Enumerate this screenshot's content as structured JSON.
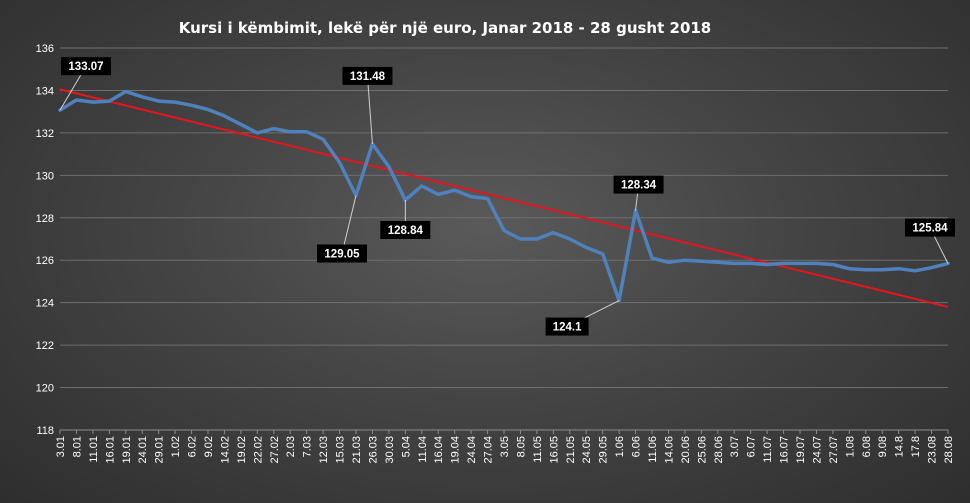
{
  "chart_data": {
    "type": "line",
    "title": "Kursi i këmbimit, lekë për një euro, Janar 2018 - 28 gusht 2018",
    "xlabel": "",
    "ylabel": "",
    "ylim": [
      118,
      136
    ],
    "y_ticks": [
      118,
      120,
      122,
      124,
      126,
      128,
      130,
      132,
      134,
      136
    ],
    "grid": true,
    "categories": [
      "3.01",
      "8.01",
      "11.01",
      "16.01",
      "19.01",
      "24.01",
      "29.01",
      "1.02",
      "6.02",
      "9.02",
      "14.02",
      "19.02",
      "22.02",
      "27.02",
      "2.03",
      "7.03",
      "12.03",
      "15.03",
      "21.03",
      "26.03",
      "30.03",
      "5.04",
      "11.04",
      "16.04",
      "19.04",
      "24.04",
      "27.04",
      "3.05",
      "8.05",
      "11.05",
      "16.05",
      "21.05",
      "24.05",
      "29.05",
      "1.06",
      "6.06",
      "11.06",
      "14.06",
      "20.06",
      "25.06",
      "28.06",
      "3.07",
      "6.07",
      "11.07",
      "16.07",
      "19.07",
      "24.07",
      "27.07",
      "1.08",
      "6.08",
      "9.08",
      "14.8",
      "17.8",
      "23.08",
      "28.08"
    ],
    "series": [
      {
        "name": "",
        "color": "#4f81bd",
        "values": [
          133.07,
          133.55,
          133.45,
          133.5,
          133.95,
          133.7,
          133.5,
          133.45,
          133.3,
          133.1,
          132.8,
          132.4,
          132.0,
          132.2,
          132.05,
          132.05,
          131.7,
          130.6,
          129.05,
          131.48,
          130.4,
          128.84,
          129.5,
          129.1,
          129.3,
          129.0,
          128.9,
          127.4,
          127.0,
          127.0,
          127.3,
          127.0,
          126.6,
          126.3,
          124.1,
          128.34,
          126.1,
          125.9,
          126.0,
          125.95,
          125.9,
          125.85,
          125.85,
          125.8,
          125.85,
          125.85,
          125.85,
          125.8,
          125.6,
          125.55,
          125.55,
          125.6,
          125.5,
          125.65,
          125.84
        ]
      },
      {
        "name": "",
        "color": "#e8141b",
        "type": "trendline",
        "values_linear_endpoints": [
          134.05,
          123.8
        ]
      }
    ],
    "annotations": [
      {
        "label": "133.07",
        "category_index": 0,
        "value": 133.07
      },
      {
        "label": "131.48",
        "category_index": 19,
        "value": 131.48
      },
      {
        "label": "129.05",
        "category_index": 18,
        "value": 129.05
      },
      {
        "label": "128.84",
        "category_index": 21,
        "value": 128.84
      },
      {
        "label": "128.34",
        "category_index": 35,
        "value": 128.34
      },
      {
        "label": "124.1",
        "category_index": 34,
        "value": 124.1
      },
      {
        "label": "125.84",
        "category_index": 54,
        "value": 125.84
      }
    ]
  }
}
